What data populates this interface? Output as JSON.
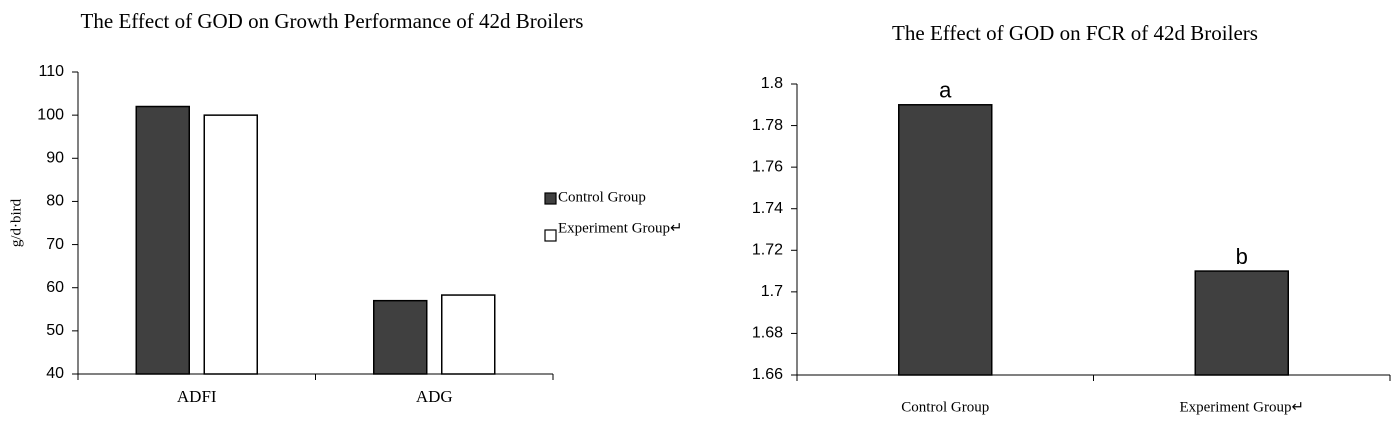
{
  "chart_data": [
    {
      "type": "bar",
      "title": "The Effect of GOD on Growth Performance of 42d Broilers",
      "y_label": "g/d·bird",
      "categories": [
        "ADFI",
        "ADG"
      ],
      "series": [
        {
          "name": "Control Group",
          "color": "#404040",
          "values": [
            102,
            57
          ]
        },
        {
          "name": "Experiment Group↵",
          "color": "#ffffff",
          "values": [
            100,
            58.3
          ]
        }
      ],
      "ylim": [
        40,
        110
      ],
      "yticks": [
        40,
        50,
        60,
        70,
        80,
        90,
        100,
        110
      ],
      "legend": "right"
    },
    {
      "type": "bar",
      "title": "The Effect of GOD on FCR of 42d Broilers",
      "categories": [
        "Control Group",
        "Experiment Group↵"
      ],
      "values": [
        1.79,
        1.71
      ],
      "annotations": [
        "a",
        "b"
      ],
      "color": "#404040",
      "ylim": [
        1.66,
        1.8
      ],
      "yticks": [
        1.66,
        1.68,
        1.7,
        1.72,
        1.74,
        1.76,
        1.78,
        1.8
      ]
    }
  ]
}
